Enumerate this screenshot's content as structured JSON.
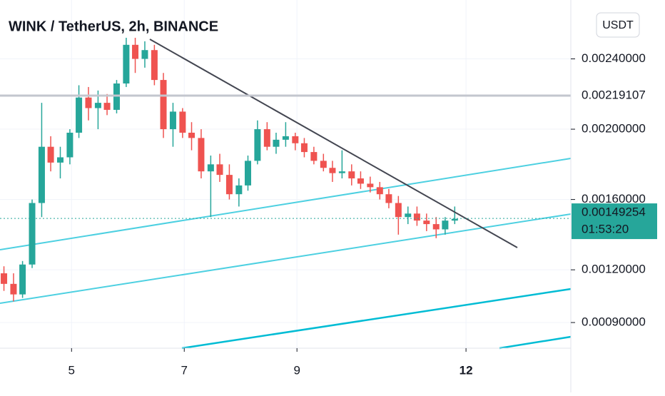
{
  "chart_data": {
    "type": "candlestick",
    "title": "WINK / TetherUS, 2h, BINANCE",
    "currency": "USDT",
    "x": [
      3.8,
      3.97,
      4.13,
      4.3,
      4.47,
      4.63,
      4.8,
      4.97,
      5.13,
      5.3,
      5.47,
      5.63,
      5.8,
      5.97,
      6.13,
      6.3,
      6.47,
      6.63,
      6.8,
      6.97,
      7.13,
      7.3,
      7.47,
      7.63,
      7.8,
      7.97,
      8.13,
      8.3,
      8.47,
      8.63,
      8.8,
      8.97,
      9.13,
      9.3,
      9.47,
      9.63,
      9.8,
      9.97,
      10.13,
      10.3,
      10.47,
      10.63,
      10.8,
      10.97,
      11.13,
      11.3,
      11.47,
      11.63,
      11.8
    ],
    "open": [
      0.00118,
      0.00112,
      0.00106,
      0.00123,
      0.00158,
      0.0019,
      0.00181,
      0.00184,
      0.00198,
      0.00218,
      0.00212,
      0.00215,
      0.00211,
      0.00226,
      0.00248,
      0.0024,
      0.00245,
      0.00228,
      0.002,
      0.0021,
      0.00198,
      0.00195,
      0.00176,
      0.0018,
      0.00174,
      0.00163,
      0.00168,
      0.00182,
      0.002,
      0.0019,
      0.00194,
      0.00196,
      0.00192,
      0.00187,
      0.00182,
      0.00178,
      0.00175,
      0.00176,
      0.00172,
      0.00169,
      0.00167,
      0.00163,
      0.00158,
      0.0015,
      0.00152,
      0.00148,
      0.00146,
      0.00143,
      0.00148
    ],
    "high": [
      0.00122,
      0.00118,
      0.00125,
      0.0016,
      0.00215,
      0.00196,
      0.0019,
      0.002,
      0.00225,
      0.00224,
      0.00222,
      0.0022,
      0.00228,
      0.00252,
      0.00252,
      0.0025,
      0.00248,
      0.00232,
      0.00215,
      0.00212,
      0.00204,
      0.002,
      0.00185,
      0.00186,
      0.0018,
      0.00172,
      0.00185,
      0.00205,
      0.00204,
      0.00198,
      0.00204,
      0.00198,
      0.00195,
      0.0019,
      0.00186,
      0.00182,
      0.00188,
      0.0018,
      0.00176,
      0.00173,
      0.0017,
      0.00166,
      0.00162,
      0.00156,
      0.00156,
      0.00152,
      0.0015,
      0.0015,
      0.00156
    ],
    "low": [
      0.00108,
      0.00102,
      0.00104,
      0.00121,
      0.0015,
      0.00176,
      0.00172,
      0.0018,
      0.00195,
      0.00205,
      0.002,
      0.00208,
      0.00209,
      0.00224,
      0.00232,
      0.00235,
      0.00225,
      0.00195,
      0.0019,
      0.00195,
      0.00188,
      0.00172,
      0.0015,
      0.0017,
      0.0016,
      0.00156,
      0.00165,
      0.0018,
      0.00188,
      0.00186,
      0.0019,
      0.00188,
      0.00184,
      0.0018,
      0.00176,
      0.0017,
      0.00172,
      0.00168,
      0.00166,
      0.00164,
      0.0016,
      0.00155,
      0.0014,
      0.00146,
      0.00145,
      0.00142,
      0.00138,
      0.0014,
      0.00146
    ],
    "close": [
      0.00112,
      0.00106,
      0.00123,
      0.00158,
      0.0019,
      0.00181,
      0.00184,
      0.00198,
      0.00218,
      0.00212,
      0.00215,
      0.00211,
      0.00226,
      0.00248,
      0.0024,
      0.00245,
      0.00228,
      0.002,
      0.0021,
      0.00198,
      0.00195,
      0.00176,
      0.0018,
      0.00174,
      0.00163,
      0.00168,
      0.00182,
      0.002,
      0.0019,
      0.00194,
      0.00196,
      0.00192,
      0.00187,
      0.00182,
      0.00178,
      0.00175,
      0.00176,
      0.00172,
      0.00169,
      0.00167,
      0.00163,
      0.00158,
      0.0015,
      0.00152,
      0.00148,
      0.00146,
      0.00143,
      0.00148,
      0.00149
    ],
    "up_color": "#26a69a",
    "down_color": "#ef5350",
    "xlim": [
      3.73,
      13.86
    ],
    "xticks": [
      5,
      7,
      9,
      12
    ],
    "ylim": [
      0.000754,
      0.002735
    ],
    "yticks": [
      {
        "value": 0.0024,
        "label": "0.00240000"
      },
      {
        "value": 0.002,
        "label": "0.00200000"
      },
      {
        "value": 0.0016,
        "label": "0.00160000"
      },
      {
        "value": 0.0012,
        "label": "0.00120000"
      },
      {
        "value": 0.0009,
        "label": "0.00090000"
      }
    ],
    "grid": true,
    "alert_line": 0.00219107,
    "last_price": 0.00149254,
    "countdown": "01:53:20"
  }
}
